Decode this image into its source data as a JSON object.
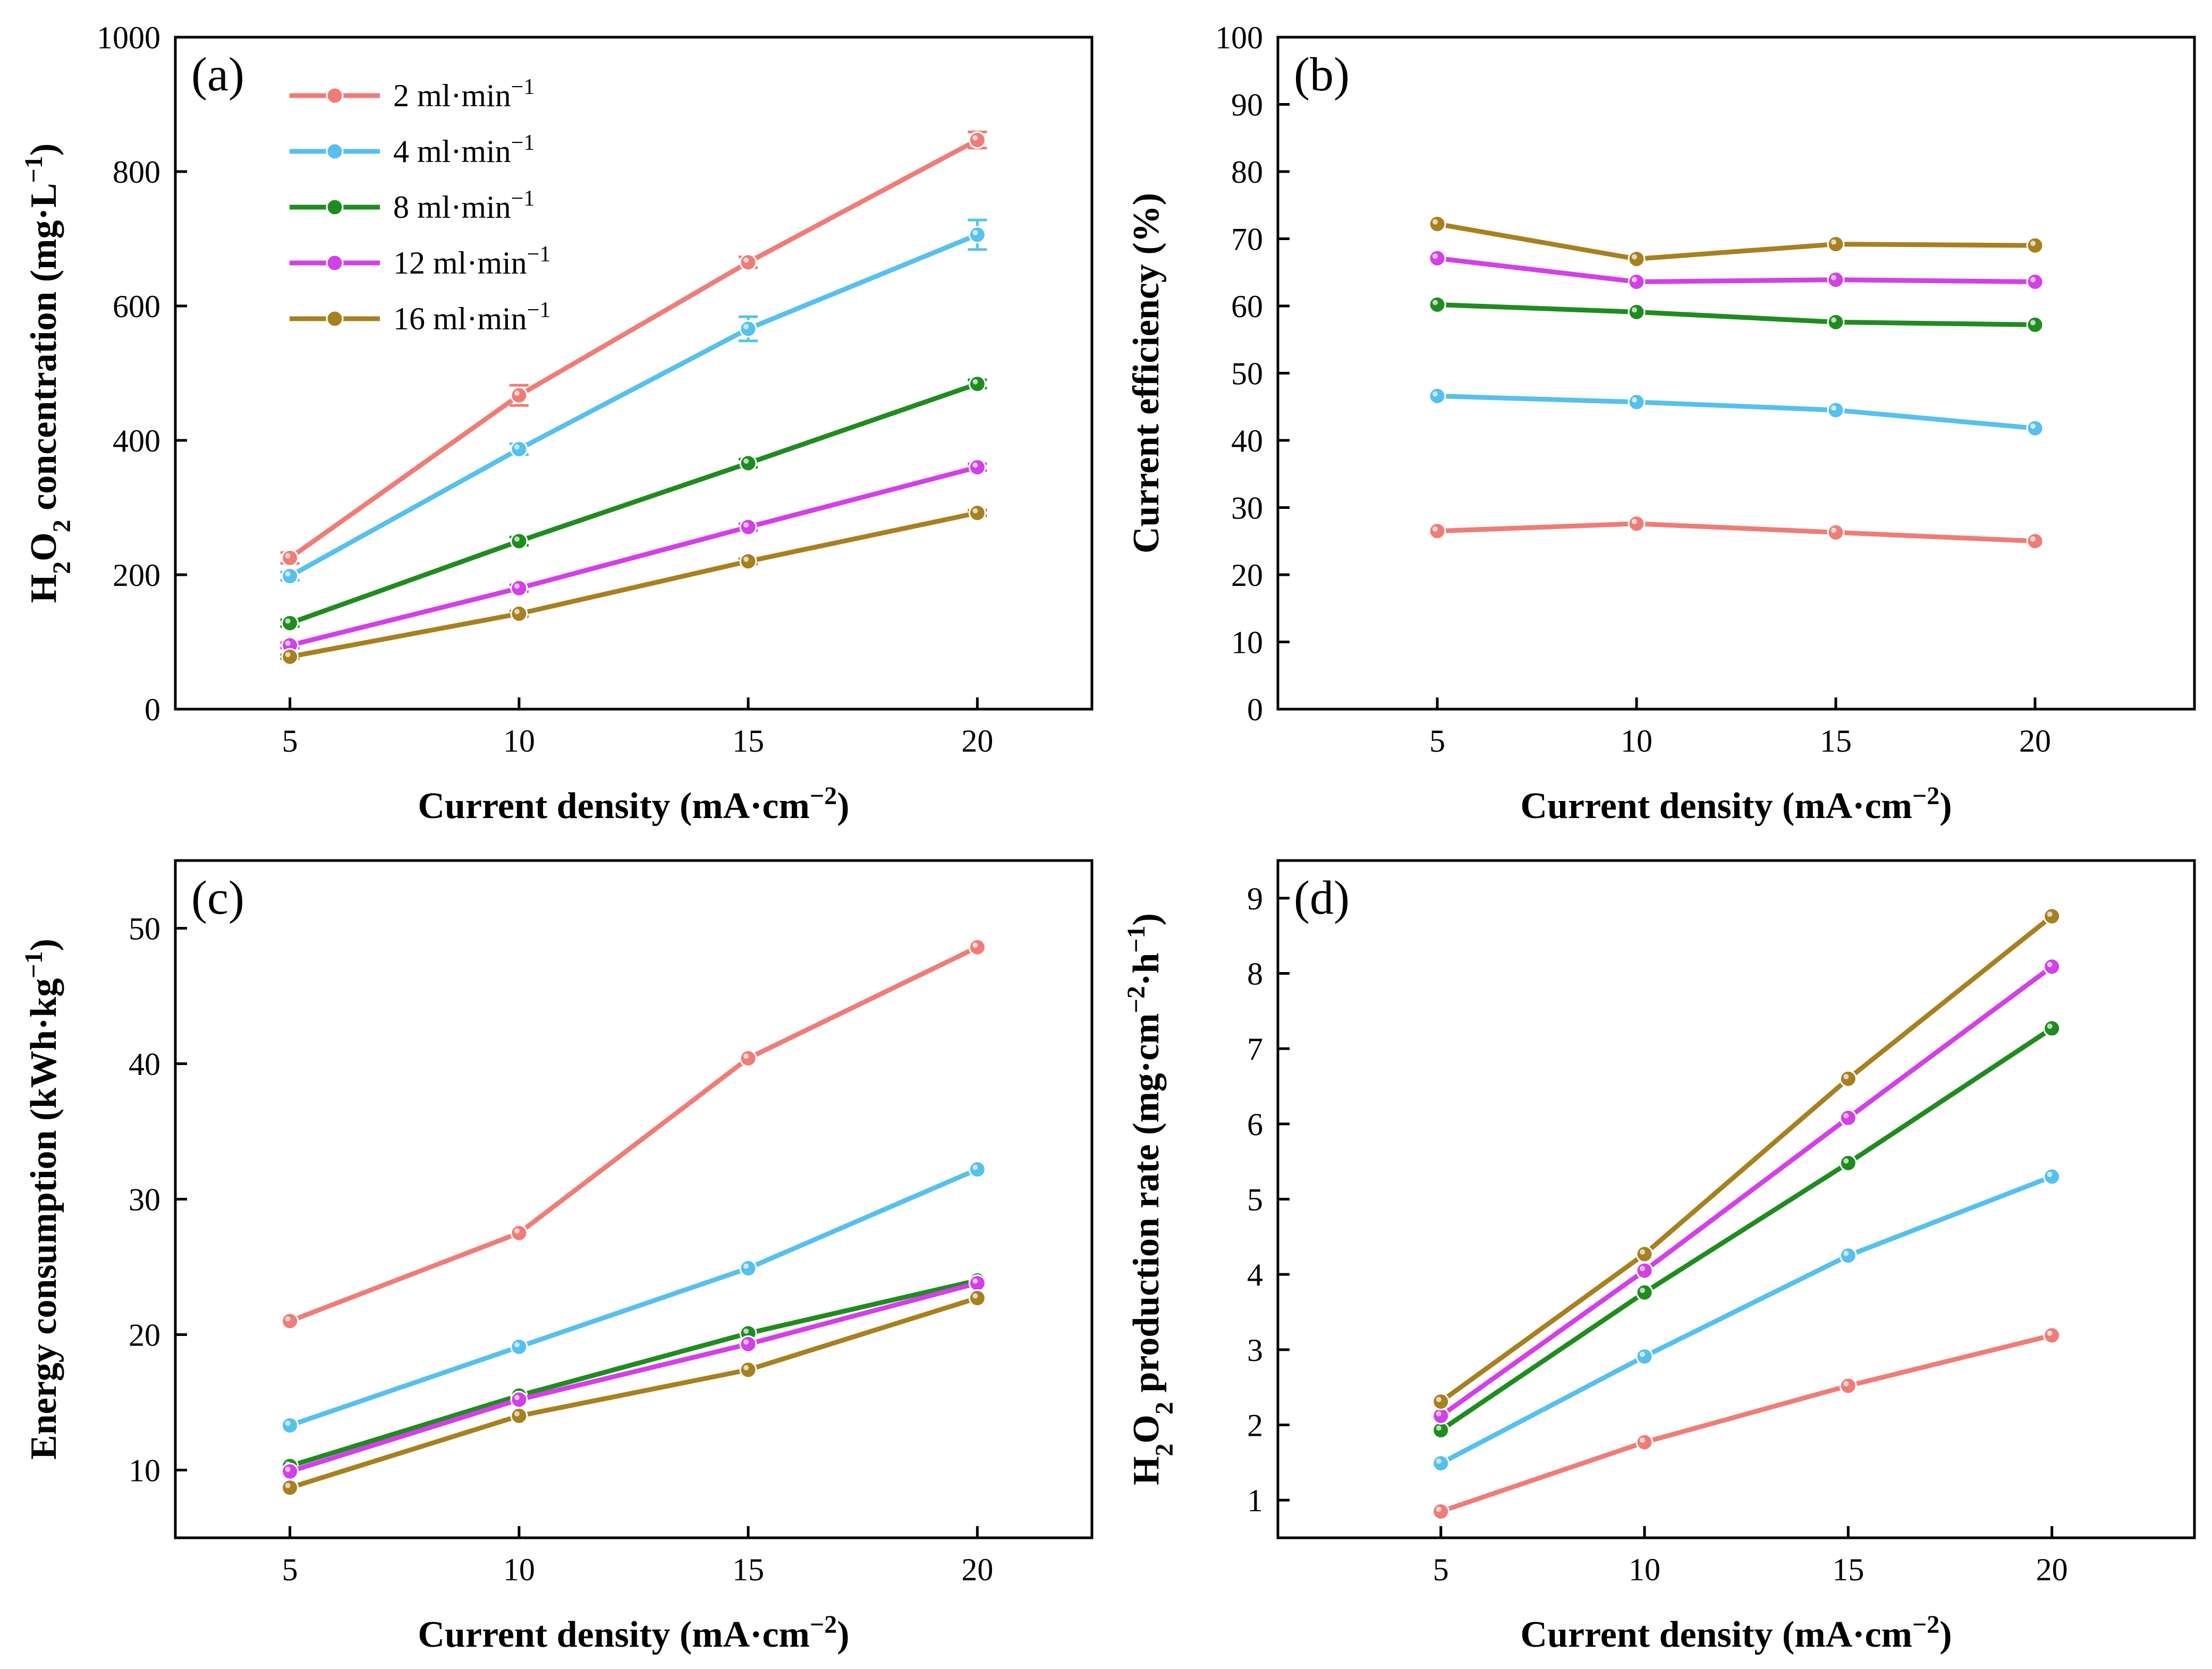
{
  "series_meta": [
    {
      "key": "s2",
      "color": "#f07c77"
    },
    {
      "key": "s4",
      "color": "#56c0f0"
    },
    {
      "key": "s8",
      "color": "#1f8c1f"
    },
    {
      "key": "s12",
      "color": "#d33fe8"
    },
    {
      "key": "s16",
      "color": "#a88020"
    }
  ],
  "legend": {
    "entries": [
      {
        "text": "2 ml·min",
        "sup": "−1"
      },
      {
        "text": "4 ml·min",
        "sup": "−1"
      },
      {
        "text": "8 ml·min",
        "sup": "−1"
      },
      {
        "text": "12 ml·min",
        "sup": "−1"
      },
      {
        "text": "16 ml·min",
        "sup": "−1"
      }
    ]
  },
  "chart_data": [
    {
      "type": "line",
      "panel_label": "(a)",
      "x": [
        5,
        10,
        15,
        20
      ],
      "xticks": [
        "5",
        "10",
        "15",
        "20"
      ],
      "xlim": [
        2.5,
        22.5
      ],
      "xlabel": {
        "main": "Current density (mA·cm",
        "sup": "−2",
        "tail": ")"
      },
      "ylabel": {
        "pre": "H",
        "sub1": "2",
        "mid": "O",
        "sub2": "2",
        "main": " concentration (mg·L",
        "sup": "−1",
        "tail": ")"
      },
      "ylim": [
        0,
        1000
      ],
      "yticks": [
        "0",
        "200",
        "400",
        "600",
        "800",
        "1000"
      ],
      "error_bars": true,
      "series": [
        {
          "values": [
            225,
            467,
            665,
            847
          ],
          "errors": [
            8,
            15,
            8,
            12
          ]
        },
        {
          "values": [
            198,
            387,
            566,
            706
          ],
          "errors": [
            6,
            8,
            18,
            22
          ]
        },
        {
          "values": [
            128,
            250,
            366,
            484
          ],
          "errors": [
            5,
            6,
            6,
            6
          ]
        },
        {
          "values": [
            95,
            180,
            271,
            360
          ],
          "errors": [
            4,
            5,
            5,
            5
          ]
        },
        {
          "values": [
            78,
            142,
            220,
            292
          ],
          "errors": [
            3,
            4,
            4,
            4
          ]
        }
      ]
    },
    {
      "type": "line",
      "panel_label": "(b)",
      "x": [
        5,
        10,
        15,
        20
      ],
      "xticks": [
        "5",
        "10",
        "15",
        "20"
      ],
      "xlim": [
        1,
        24
      ],
      "xlabel": {
        "main": "Current density (mA·cm",
        "sup": "−2",
        "tail": ")"
      },
      "ylabel": {
        "main": "Current efficiency (%)"
      },
      "ylim": [
        0,
        100
      ],
      "yticks": [
        "0",
        "10",
        "20",
        "30",
        "40",
        "50",
        "60",
        "70",
        "80",
        "90",
        "100"
      ],
      "series": [
        {
          "values": [
            26.5,
            27.6,
            26.3,
            25.0
          ]
        },
        {
          "values": [
            46.6,
            45.7,
            44.5,
            41.8
          ]
        },
        {
          "values": [
            60.2,
            59.1,
            57.6,
            57.2
          ]
        },
        {
          "values": [
            67.1,
            63.6,
            63.9,
            63.6
          ]
        },
        {
          "values": [
            72.2,
            67.0,
            69.2,
            69.0
          ]
        }
      ]
    },
    {
      "type": "line",
      "panel_label": "(c)",
      "x": [
        5,
        10,
        15,
        20
      ],
      "xticks": [
        "5",
        "10",
        "15",
        "20"
      ],
      "xlim": [
        2.5,
        22.5
      ],
      "xlabel": {
        "main": "Current density (mA·cm",
        "sup": "−2",
        "tail": ")"
      },
      "ylabel": {
        "main": "Energy consumption (kWh·kg",
        "sup": "−1",
        "tail": ")"
      },
      "ylim": [
        5,
        55
      ],
      "yticks": [
        "10",
        "20",
        "30",
        "40",
        "50"
      ],
      "ytick_values": [
        10,
        20,
        30,
        40,
        50
      ],
      "series": [
        {
          "values": [
            21.0,
            27.5,
            40.4,
            48.6
          ]
        },
        {
          "values": [
            13.3,
            19.1,
            24.9,
            32.2
          ]
        },
        {
          "values": [
            10.3,
            15.5,
            20.1,
            24.0
          ]
        },
        {
          "values": [
            9.9,
            15.2,
            19.3,
            23.8
          ]
        },
        {
          "values": [
            8.7,
            14.0,
            17.4,
            22.7
          ]
        }
      ]
    },
    {
      "type": "line",
      "panel_label": "(d)",
      "x": [
        5,
        10,
        15,
        20
      ],
      "xticks": [
        "5",
        "10",
        "15",
        "20"
      ],
      "xlim": [
        1,
        23.5
      ],
      "xlabel": {
        "main": "Current density (mA·cm",
        "sup": "−2",
        "tail": ")"
      },
      "ylabel": {
        "pre": "H",
        "sub1": "2",
        "mid": "O",
        "sub2": "2",
        "main": " production rate (mg·cm",
        "sup": "−2",
        "main2": "·h",
        "sup2": "−1",
        "tail": ")"
      },
      "ylim": [
        0.5,
        9.5
      ],
      "yticks": [
        "1",
        "2",
        "3",
        "4",
        "5",
        "6",
        "7",
        "8",
        "9"
      ],
      "ytick_values": [
        1,
        2,
        3,
        4,
        5,
        6,
        7,
        8,
        9
      ],
      "series": [
        {
          "values": [
            0.85,
            1.77,
            2.52,
            3.19
          ]
        },
        {
          "values": [
            1.49,
            2.91,
            4.25,
            5.3
          ]
        },
        {
          "values": [
            1.93,
            3.76,
            5.48,
            7.27
          ]
        },
        {
          "values": [
            2.12,
            4.05,
            6.08,
            8.09
          ]
        },
        {
          "values": [
            2.31,
            4.27,
            6.6,
            8.76
          ]
        }
      ]
    }
  ]
}
